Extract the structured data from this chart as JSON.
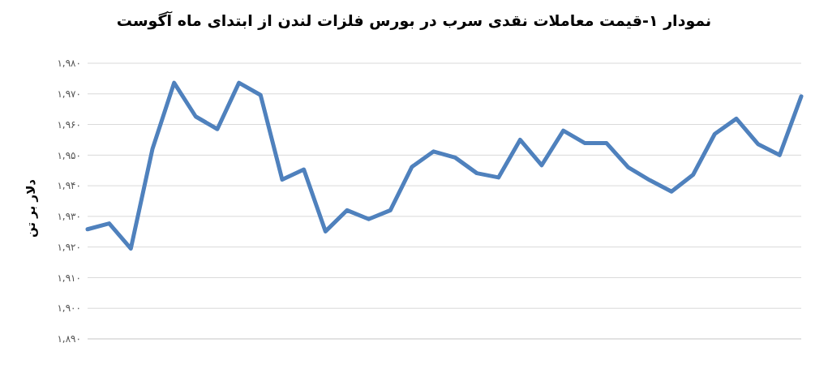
{
  "chart_data": {
    "type": "line",
    "title": "نمودار ۱-قیمت معاملات نقدی سرب در بورس فلزات لندن از ابتدای ماه آگوست",
    "ylabel": "دلار بر تن",
    "categories": [
      null,
      null,
      null,
      null,
      null,
      null,
      null,
      null,
      null,
      null,
      null,
      null,
      null,
      null,
      null,
      null,
      null,
      null,
      null,
      null,
      null,
      null,
      null,
      null,
      null,
      null,
      null,
      null,
      null,
      null,
      null,
      null,
      null,
      null
    ],
    "series": [
      {
        "color": "#4f81bd",
        "values": [
          1925.8,
          1927.7,
          1919.5,
          1952,
          1973.6,
          1962.6,
          1958.5,
          1973.6,
          1969.6,
          1942,
          1945.3,
          1925.1,
          1932,
          1929.1,
          1932,
          1946.2,
          1951.2,
          1949.2,
          1944.1,
          1942.7,
          1955,
          1946.7,
          1958,
          1953.9,
          1953.9,
          1946,
          1941.8,
          1938.1,
          1943.6,
          1956.9,
          1961.9,
          1953.6,
          1950,
          1969.2
        ]
      }
    ],
    "ylim": [
      1890,
      1980
    ],
    "yticks": [
      {
        "value": 1890,
        "label": "۱,۸۹۰"
      },
      {
        "value": 1900,
        "label": "۱,۹۰۰"
      },
      {
        "value": 1910,
        "label": "۱,۹۱۰"
      },
      {
        "value": 1920,
        "label": "۱,۹۲۰"
      },
      {
        "value": 1930,
        "label": "۱,۹۳۰"
      },
      {
        "value": 1940,
        "label": "۱,۹۴۰"
      },
      {
        "value": 1950,
        "label": "۱,۹۵۰"
      },
      {
        "value": 1960,
        "label": "۱,۹۶۰"
      },
      {
        "value": 1970,
        "label": "۱,۹۷۰"
      },
      {
        "value": 1980,
        "label": "۱,۹۸۰"
      }
    ],
    "grid": "y",
    "marker": "none",
    "line_style": "solid"
  }
}
